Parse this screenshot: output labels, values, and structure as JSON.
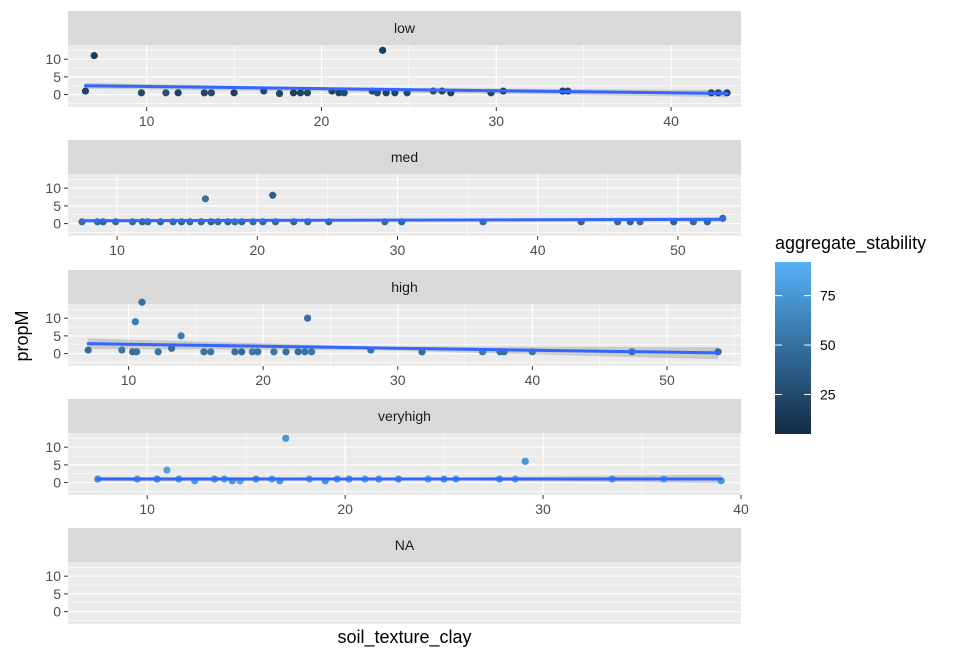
{
  "chart_data": {
    "type": "scatter",
    "facet_by": "aggregate_stability level",
    "xlabel": "soil_texture_clay",
    "ylabel": "propM",
    "smooth": {
      "method": "linear",
      "color": "#3366ff",
      "confidence_band": true
    },
    "legend": {
      "title": "aggregate_stability",
      "type": "colorbar",
      "placement": "right",
      "range": [
        5,
        92
      ],
      "breaks": [
        25,
        50,
        75
      ],
      "low_color": "#132b43",
      "high_color": "#56b1f7"
    },
    "y_ticks": [
      0,
      5,
      10
    ],
    "panels": [
      {
        "label": "low",
        "xlim": [
          5.5,
          44
        ],
        "x_ticks": [
          10,
          20,
          30,
          40
        ],
        "ylim": [
          -3.5,
          14
        ],
        "smooth_line": [
          [
            6.5,
            2.5
          ],
          [
            43.2,
            0.3
          ]
        ],
        "band": [
          [
            6.5,
            3.3,
            1.7
          ],
          [
            20,
            2.0,
            0.9
          ],
          [
            43.2,
            1.3,
            -0.7
          ]
        ],
        "points": [
          {
            "x": 6.5,
            "y": 1,
            "c": 20
          },
          {
            "x": 7.0,
            "y": 11,
            "c": 18
          },
          {
            "x": 9.7,
            "y": 0.5,
            "c": 25
          },
          {
            "x": 11.1,
            "y": 0.5,
            "c": 30
          },
          {
            "x": 11.8,
            "y": 0.5,
            "c": 20
          },
          {
            "x": 13.3,
            "y": 0.5,
            "c": 22
          },
          {
            "x": 13.7,
            "y": 0.5,
            "c": 24
          },
          {
            "x": 15.0,
            "y": 0.5,
            "c": 18
          },
          {
            "x": 16.7,
            "y": 1,
            "c": 26
          },
          {
            "x": 17.6,
            "y": 0.3,
            "c": 22
          },
          {
            "x": 18.4,
            "y": 0.5,
            "c": 18
          },
          {
            "x": 18.8,
            "y": 0.5,
            "c": 20
          },
          {
            "x": 19.2,
            "y": 0.5,
            "c": 24
          },
          {
            "x": 20.6,
            "y": 1,
            "c": 22
          },
          {
            "x": 21.0,
            "y": 0.5,
            "c": 20
          },
          {
            "x": 21.3,
            "y": 0.5,
            "c": 26
          },
          {
            "x": 22.9,
            "y": 1,
            "c": 24
          },
          {
            "x": 23.2,
            "y": 0.5,
            "c": 28
          },
          {
            "x": 23.5,
            "y": 12.5,
            "c": 18
          },
          {
            "x": 23.7,
            "y": 0.5,
            "c": 20
          },
          {
            "x": 24.2,
            "y": 0.5,
            "c": 22
          },
          {
            "x": 24.9,
            "y": 0.5,
            "c": 24
          },
          {
            "x": 26.4,
            "y": 1,
            "c": 30
          },
          {
            "x": 26.9,
            "y": 1,
            "c": 22
          },
          {
            "x": 27.4,
            "y": 0.5,
            "c": 20
          },
          {
            "x": 29.7,
            "y": 0.5,
            "c": 24
          },
          {
            "x": 30.4,
            "y": 1,
            "c": 22
          },
          {
            "x": 33.8,
            "y": 1,
            "c": 20
          },
          {
            "x": 34.1,
            "y": 1,
            "c": 26
          },
          {
            "x": 42.3,
            "y": 0.5,
            "c": 22
          },
          {
            "x": 42.7,
            "y": 0.5,
            "c": 24
          },
          {
            "x": 43.2,
            "y": 0.5,
            "c": 20
          }
        ]
      },
      {
        "label": "med",
        "xlim": [
          6.5,
          54.5
        ],
        "x_ticks": [
          10,
          20,
          30,
          40,
          50
        ],
        "ylim": [
          -3.5,
          14
        ],
        "smooth_line": [
          [
            7.5,
            0.8
          ],
          [
            53.2,
            1.2
          ]
        ],
        "band": [
          [
            7.5,
            1.3,
            0.3
          ],
          [
            30,
            1.3,
            0.7
          ],
          [
            53.2,
            1.8,
            0.6
          ]
        ],
        "points": [
          {
            "x": 7.5,
            "y": 0.5,
            "c": 45
          },
          {
            "x": 8.6,
            "y": 0.5,
            "c": 48
          },
          {
            "x": 9.0,
            "y": 0.5,
            "c": 42
          },
          {
            "x": 9.9,
            "y": 0.5,
            "c": 45
          },
          {
            "x": 11.1,
            "y": 0.5,
            "c": 48
          },
          {
            "x": 11.8,
            "y": 0.5,
            "c": 42
          },
          {
            "x": 12.2,
            "y": 0.5,
            "c": 46
          },
          {
            "x": 13.1,
            "y": 0.5,
            "c": 44
          },
          {
            "x": 14.0,
            "y": 0.5,
            "c": 48
          },
          {
            "x": 14.6,
            "y": 0.5,
            "c": 42
          },
          {
            "x": 15.2,
            "y": 0.5,
            "c": 46
          },
          {
            "x": 16.0,
            "y": 0.5,
            "c": 44
          },
          {
            "x": 16.3,
            "y": 7,
            "c": 50
          },
          {
            "x": 16.7,
            "y": 0.5,
            "c": 42
          },
          {
            "x": 17.2,
            "y": 0.5,
            "c": 46
          },
          {
            "x": 17.9,
            "y": 0.5,
            "c": 44
          },
          {
            "x": 18.4,
            "y": 0.5,
            "c": 48
          },
          {
            "x": 18.9,
            "y": 0.5,
            "c": 42
          },
          {
            "x": 19.7,
            "y": 0.5,
            "c": 46
          },
          {
            "x": 20.4,
            "y": 0.5,
            "c": 44
          },
          {
            "x": 21.1,
            "y": 8,
            "c": 40
          },
          {
            "x": 21.3,
            "y": 0.5,
            "c": 46
          },
          {
            "x": 22.6,
            "y": 0.5,
            "c": 44
          },
          {
            "x": 23.6,
            "y": 0.5,
            "c": 48
          },
          {
            "x": 25.1,
            "y": 0.5,
            "c": 42
          },
          {
            "x": 29.1,
            "y": 0.5,
            "c": 46
          },
          {
            "x": 30.3,
            "y": 0.5,
            "c": 44
          },
          {
            "x": 36.1,
            "y": 0.5,
            "c": 48
          },
          {
            "x": 43.1,
            "y": 0.5,
            "c": 42
          },
          {
            "x": 45.7,
            "y": 0.5,
            "c": 46
          },
          {
            "x": 46.6,
            "y": 0.5,
            "c": 44
          },
          {
            "x": 47.3,
            "y": 0.5,
            "c": 48
          },
          {
            "x": 49.7,
            "y": 0.5,
            "c": 42
          },
          {
            "x": 51.1,
            "y": 0.5,
            "c": 46
          },
          {
            "x": 52.1,
            "y": 0.5,
            "c": 44
          },
          {
            "x": 53.2,
            "y": 1.5,
            "c": 48
          }
        ]
      },
      {
        "label": "high",
        "xlim": [
          5.5,
          55.5
        ],
        "x_ticks": [
          10,
          20,
          30,
          40,
          50
        ],
        "ylim": [
          -3.5,
          14
        ],
        "smooth_line": [
          [
            7,
            2.8
          ],
          [
            53.8,
            0.2
          ]
        ],
        "band": [
          [
            7,
            4.3,
            1.3
          ],
          [
            28,
            2.0,
            1.0
          ],
          [
            53.8,
            1.8,
            -1.6
          ]
        ],
        "points": [
          {
            "x": 7.0,
            "y": 1,
            "c": 48
          },
          {
            "x": 9.5,
            "y": 1,
            "c": 55
          },
          {
            "x": 10.3,
            "y": 0.5,
            "c": 50
          },
          {
            "x": 10.5,
            "y": 9,
            "c": 58
          },
          {
            "x": 10.6,
            "y": 0.5,
            "c": 52
          },
          {
            "x": 11.0,
            "y": 14.5,
            "c": 50
          },
          {
            "x": 12.2,
            "y": 0.5,
            "c": 54
          },
          {
            "x": 13.2,
            "y": 1.5,
            "c": 48
          },
          {
            "x": 13.9,
            "y": 5,
            "c": 56
          },
          {
            "x": 15.6,
            "y": 0.5,
            "c": 52
          },
          {
            "x": 16.1,
            "y": 0.5,
            "c": 54
          },
          {
            "x": 17.9,
            "y": 0.5,
            "c": 50
          },
          {
            "x": 18.4,
            "y": 0.5,
            "c": 48
          },
          {
            "x": 19.2,
            "y": 0.5,
            "c": 56
          },
          {
            "x": 19.6,
            "y": 0.5,
            "c": 52
          },
          {
            "x": 20.8,
            "y": 0.5,
            "c": 54
          },
          {
            "x": 21.7,
            "y": 0.5,
            "c": 50
          },
          {
            "x": 22.6,
            "y": 0.5,
            "c": 48
          },
          {
            "x": 23.1,
            "y": 0.5,
            "c": 52
          },
          {
            "x": 23.3,
            "y": 10,
            "c": 50
          },
          {
            "x": 23.6,
            "y": 0.5,
            "c": 54
          },
          {
            "x": 28.0,
            "y": 1,
            "c": 52
          },
          {
            "x": 31.8,
            "y": 0.5,
            "c": 48
          },
          {
            "x": 36.3,
            "y": 0.5,
            "c": 56
          },
          {
            "x": 37.6,
            "y": 0.5,
            "c": 52
          },
          {
            "x": 37.9,
            "y": 0.5,
            "c": 50
          },
          {
            "x": 40.0,
            "y": 0.5,
            "c": 54
          },
          {
            "x": 47.4,
            "y": 0.5,
            "c": 52
          },
          {
            "x": 53.8,
            "y": 0.5,
            "c": 48
          }
        ]
      },
      {
        "label": "veryhigh",
        "xlim": [
          6,
          40
        ],
        "x_ticks": [
          10,
          20,
          30,
          40
        ],
        "ylim": [
          -3.5,
          14
        ],
        "smooth_line": [
          [
            7.5,
            1.0
          ],
          [
            39,
            1.0
          ]
        ],
        "band": [
          [
            7.5,
            1.6,
            0.4
          ],
          [
            25,
            1.4,
            0.7
          ],
          [
            39,
            2.3,
            -0.2
          ]
        ],
        "points": [
          {
            "x": 7.5,
            "y": 1,
            "c": 72
          },
          {
            "x": 9.5,
            "y": 1,
            "c": 75
          },
          {
            "x": 10.5,
            "y": 1,
            "c": 70
          },
          {
            "x": 11.0,
            "y": 3.5,
            "c": 82
          },
          {
            "x": 11.6,
            "y": 1,
            "c": 74
          },
          {
            "x": 12.4,
            "y": 0.5,
            "c": 78
          },
          {
            "x": 13.4,
            "y": 1,
            "c": 72
          },
          {
            "x": 13.9,
            "y": 1,
            "c": 80
          },
          {
            "x": 14.3,
            "y": 0.5,
            "c": 76
          },
          {
            "x": 14.7,
            "y": 0.5,
            "c": 84
          },
          {
            "x": 15.5,
            "y": 1,
            "c": 74
          },
          {
            "x": 16.3,
            "y": 1,
            "c": 80
          },
          {
            "x": 16.7,
            "y": 0.5,
            "c": 76
          },
          {
            "x": 17.0,
            "y": 12.5,
            "c": 74
          },
          {
            "x": 18.2,
            "y": 1,
            "c": 80
          },
          {
            "x": 19.0,
            "y": 0.5,
            "c": 72
          },
          {
            "x": 19.6,
            "y": 1,
            "c": 78
          },
          {
            "x": 20.2,
            "y": 1,
            "c": 74
          },
          {
            "x": 21.0,
            "y": 1,
            "c": 82
          },
          {
            "x": 21.7,
            "y": 1,
            "c": 76
          },
          {
            "x": 22.7,
            "y": 1,
            "c": 72
          },
          {
            "x": 24.2,
            "y": 1,
            "c": 80
          },
          {
            "x": 25.0,
            "y": 1,
            "c": 74
          },
          {
            "x": 25.6,
            "y": 1,
            "c": 78
          },
          {
            "x": 27.8,
            "y": 1,
            "c": 72
          },
          {
            "x": 28.6,
            "y": 1,
            "c": 80
          },
          {
            "x": 29.1,
            "y": 6,
            "c": 74
          },
          {
            "x": 33.5,
            "y": 1,
            "c": 76
          },
          {
            "x": 36.1,
            "y": 1,
            "c": 80
          },
          {
            "x": 39.0,
            "y": 0.5,
            "c": 78
          }
        ]
      },
      {
        "label": "NA",
        "xlim": null,
        "x_ticks": [],
        "ylim": [
          -3.5,
          14
        ],
        "smooth_line": null,
        "band": null,
        "points": []
      }
    ]
  }
}
